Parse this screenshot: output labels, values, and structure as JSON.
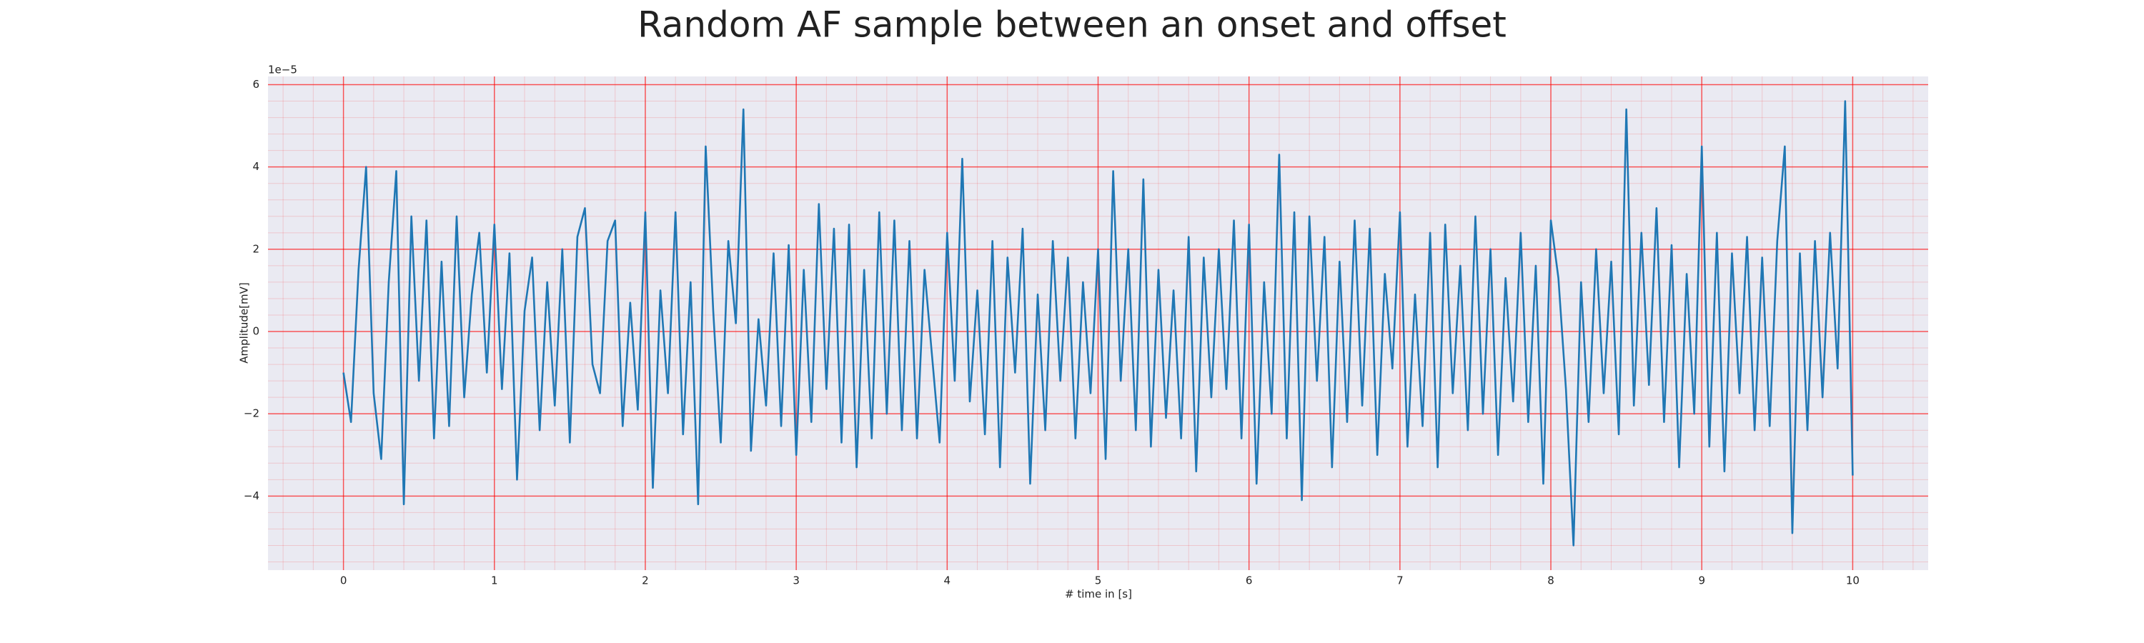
{
  "chart_data": {
    "type": "line",
    "title": "Random AF sample between an onset and offset",
    "xlabel": "# time in [s]",
    "ylabel": "Amplitude[mV]",
    "y_offset_label": "1e−5",
    "x": [
      0,
      0.05,
      0.1,
      0.15,
      0.2,
      0.25,
      0.3,
      0.35,
      0.4,
      0.45,
      0.5,
      0.55,
      0.6,
      0.65,
      0.7,
      0.75,
      0.8,
      0.85,
      0.9,
      0.95,
      1,
      1.05,
      1.1,
      1.15,
      1.2,
      1.25,
      1.3,
      1.35,
      1.4,
      1.45,
      1.5,
      1.55,
      1.6,
      1.65,
      1.7,
      1.75,
      1.8,
      1.85,
      1.9,
      1.95,
      2,
      2.05,
      2.1,
      2.15,
      2.2,
      2.25,
      2.3,
      2.35,
      2.4,
      2.45,
      2.5,
      2.55,
      2.6,
      2.65,
      2.7,
      2.75,
      2.8,
      2.85,
      2.9,
      2.95,
      3,
      3.05,
      3.1,
      3.15,
      3.2,
      3.25,
      3.3,
      3.35,
      3.4,
      3.45,
      3.5,
      3.55,
      3.6,
      3.65,
      3.7,
      3.75,
      3.8,
      3.85,
      3.9,
      3.95,
      4,
      4.05,
      4.1,
      4.15,
      4.2,
      4.25,
      4.3,
      4.35,
      4.4,
      4.45,
      4.5,
      4.55,
      4.6,
      4.65,
      4.7,
      4.75,
      4.8,
      4.85,
      4.9,
      4.95,
      5,
      5.05,
      5.1,
      5.15,
      5.2,
      5.25,
      5.3,
      5.35,
      5.4,
      5.45,
      5.5,
      5.55,
      5.6,
      5.65,
      5.7,
      5.75,
      5.8,
      5.85,
      5.9,
      5.95,
      6,
      6.05,
      6.1,
      6.15,
      6.2,
      6.25,
      6.3,
      6.35,
      6.4,
      6.45,
      6.5,
      6.55,
      6.6,
      6.65,
      6.7,
      6.75,
      6.8,
      6.85,
      6.9,
      6.95,
      7,
      7.05,
      7.1,
      7.15,
      7.2,
      7.25,
      7.3,
      7.35,
      7.4,
      7.45,
      7.5,
      7.55,
      7.6,
      7.65,
      7.7,
      7.75,
      7.8,
      7.85,
      7.9,
      7.95,
      8,
      8.05,
      8.1,
      8.15,
      8.2,
      8.25,
      8.3,
      8.35,
      8.4,
      8.45,
      8.5,
      8.55,
      8.6,
      8.65,
      8.7,
      8.75,
      8.8,
      8.85,
      8.9,
      8.95,
      9,
      9.05,
      9.1,
      9.15,
      9.2,
      9.25,
      9.3,
      9.35,
      9.4,
      9.45,
      9.5,
      9.55,
      9.6,
      9.65,
      9.7,
      9.75,
      9.8,
      9.85,
      9.9,
      9.95,
      10
    ],
    "series": [
      {
        "color": "#1f77b4",
        "values": [
          -1,
          -2.2,
          1.5,
          4.0,
          -1.5,
          -3.1,
          1.2,
          3.9,
          -4.2,
          2.8,
          -1.2,
          2.7,
          -2.6,
          1.7,
          -2.3,
          2.8,
          -1.6,
          0.9,
          2.4,
          -1.0,
          2.6,
          -1.4,
          1.9,
          -3.6,
          0.5,
          1.8,
          -2.4,
          1.2,
          -1.8,
          2.0,
          -2.7,
          2.3,
          3.0,
          -0.8,
          -1.5,
          2.2,
          2.7,
          -2.3,
          0.7,
          -1.9,
          2.9,
          -3.8,
          1.0,
          -1.5,
          2.9,
          -2.5,
          1.2,
          -4.2,
          4.5,
          0.5,
          -2.7,
          2.2,
          0.2,
          5.4,
          -2.9,
          0.3,
          -1.8,
          1.9,
          -2.3,
          2.1,
          -3.0,
          1.5,
          -2.2,
          3.1,
          -1.4,
          2.5,
          -2.7,
          2.6,
          -3.3,
          1.5,
          -2.6,
          2.9,
          -2.0,
          2.7,
          -2.4,
          2.2,
          -2.6,
          1.5,
          -0.6,
          -2.7,
          2.4,
          -1.2,
          4.2,
          -1.7,
          1.0,
          -2.5,
          2.2,
          -3.3,
          1.8,
          -1.0,
          2.5,
          -3.7,
          0.9,
          -2.4,
          2.2,
          -1.2,
          1.8,
          -2.6,
          1.2,
          -1.5,
          2.0,
          -3.1,
          3.9,
          -1.2,
          2.0,
          -2.4,
          3.7,
          -2.8,
          1.5,
          -2.1,
          1.0,
          -2.6,
          2.3,
          -3.4,
          1.8,
          -1.6,
          2.0,
          -1.4,
          2.7,
          -2.6,
          2.6,
          -3.7,
          1.2,
          -2.0,
          4.3,
          -2.6,
          2.9,
          -4.1,
          2.8,
          -1.2,
          2.3,
          -3.3,
          1.7,
          -2.2,
          2.7,
          -1.8,
          2.5,
          -3.0,
          1.4,
          -0.9,
          2.9,
          -2.8,
          0.9,
          -2.3,
          2.4,
          -3.3,
          2.6,
          -1.5,
          1.6,
          -2.4,
          2.8,
          -2.0,
          2.0,
          -3.0,
          1.3,
          -1.7,
          2.4,
          -2.2,
          1.6,
          -3.7,
          2.7,
          1.3,
          -1.4,
          -5.2,
          1.2,
          -2.2,
          2.0,
          -1.5,
          1.7,
          -2.5,
          5.4,
          -1.8,
          2.4,
          -1.3,
          3.0,
          -2.2,
          2.1,
          -3.3,
          1.4,
          -2.0,
          4.5,
          -2.8,
          2.4,
          -3.4,
          1.9,
          -1.5,
          2.3,
          -2.4,
          1.8,
          -2.3,
          2.2,
          4.5,
          -4.9,
          1.9,
          -2.4,
          2.2,
          -1.6,
          2.4,
          -0.9,
          5.6,
          -3.5
        ]
      }
    ],
    "xlim": [
      -0.5,
      10.5
    ],
    "ylim": [
      -5.8,
      6.2
    ],
    "xticks": [
      0,
      1,
      2,
      3,
      4,
      5,
      6,
      7,
      8,
      9,
      10
    ],
    "yticks": [
      {
        "value": -4,
        "label": "−4"
      },
      {
        "value": -2,
        "label": "−2"
      },
      0,
      2,
      4,
      6
    ],
    "grid": true,
    "grid_color": "#ff0000",
    "background": "#eaeaf2"
  }
}
